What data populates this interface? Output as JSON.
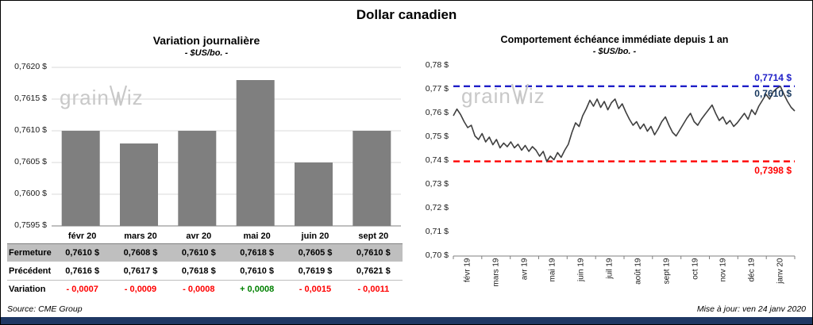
{
  "title": "Dollar canadien",
  "watermark": {
    "left": "grain",
    "right": "iz"
  },
  "footer": {
    "source": "Source: CME Group",
    "updated": "Mise à jour: ven 24 janv 2020"
  },
  "colors": {
    "bar": "#7f7f7f",
    "line": "#3f3f3f",
    "high": "#1f1fc8",
    "low": "#ff0000",
    "high_label": "#1f1fc8",
    "last_label": "#17375e",
    "low_label": "#ff0000",
    "up": "#008000",
    "down": "#ff0000",
    "accent_bar": "#1f3864",
    "table_row_bg": "#bfbfbf",
    "watermark": "#c8c8c8"
  },
  "chart_data": [
    {
      "type": "bar",
      "title": "Variation  journalière",
      "subtitle": "- $US/bo. -",
      "categories": [
        "févr 20",
        "mars 20",
        "avr 20",
        "mai 20",
        "juin 20",
        "sept 20"
      ],
      "values": [
        0.761,
        0.7608,
        0.761,
        0.7618,
        0.7605,
        0.761
      ],
      "ylim": [
        0.7595,
        0.762
      ],
      "ytick_labels": [
        "0,7620 $",
        "0,7615 $",
        "0,7610 $",
        "0,7605 $",
        "0,7600 $",
        "0,7595 $"
      ],
      "grid": true,
      "legend": "none"
    },
    {
      "type": "line",
      "title": "Comportement échéance immédiate depuis 1 an",
      "subtitle": "- $US/bo. -",
      "x_labels": [
        "févr 19",
        "mars 19",
        "avr 19",
        "mai 19",
        "juin 19",
        "juil 19",
        "août 19",
        "sept 19",
        "oct 19",
        "nov 19",
        "déc 19",
        "janv 20"
      ],
      "ylim": [
        0.7,
        0.78
      ],
      "ytick_labels": [
        "0,78 $",
        "0,77 $",
        "0,76 $",
        "0,75 $",
        "0,74 $",
        "0,73 $",
        "0,72 $",
        "0,71 $",
        "0,70 $"
      ],
      "high_line": {
        "value": 0.7714,
        "label": "0,7714 $"
      },
      "low_line": {
        "value": 0.7398,
        "label": "0,7398 $"
      },
      "last_value": 0.761,
      "last_label": "0,7610 $",
      "grid": false,
      "legend": "none",
      "series": [
        0.759,
        0.7618,
        0.7595,
        0.7565,
        0.754,
        0.755,
        0.7505,
        0.749,
        0.7515,
        0.748,
        0.75,
        0.7468,
        0.749,
        0.7455,
        0.7475,
        0.746,
        0.748,
        0.7455,
        0.747,
        0.7445,
        0.7465,
        0.744,
        0.746,
        0.7445,
        0.742,
        0.744,
        0.7398,
        0.742,
        0.7405,
        0.7435,
        0.7415,
        0.7445,
        0.747,
        0.752,
        0.756,
        0.7545,
        0.759,
        0.762,
        0.7655,
        0.763,
        0.766,
        0.7625,
        0.765,
        0.7615,
        0.7645,
        0.766,
        0.762,
        0.764,
        0.7605,
        0.7575,
        0.755,
        0.7565,
        0.7535,
        0.7555,
        0.7525,
        0.7545,
        0.751,
        0.7535,
        0.7565,
        0.7585,
        0.755,
        0.752,
        0.7505,
        0.753,
        0.7555,
        0.758,
        0.76,
        0.7565,
        0.755,
        0.7575,
        0.7595,
        0.7615,
        0.7635,
        0.76,
        0.757,
        0.7585,
        0.7555,
        0.757,
        0.7545,
        0.756,
        0.758,
        0.76,
        0.7575,
        0.7615,
        0.7595,
        0.763,
        0.7655,
        0.768,
        0.766,
        0.769,
        0.7705,
        0.7714,
        0.768,
        0.765,
        0.7625,
        0.761
      ]
    }
  ],
  "table": {
    "columns": [
      "févr 20",
      "mars 20",
      "avr 20",
      "mai 20",
      "juin 20",
      "sept 20"
    ],
    "rows": [
      {
        "key": "fermeture",
        "label": "Fermeture",
        "values": [
          "0,7610  $",
          "0,7608  $",
          "0,7610  $",
          "0,7618  $",
          "0,7605  $",
          "0,7610  $"
        ]
      },
      {
        "key": "precedent",
        "label": "Précédent",
        "values": [
          "0,7616  $",
          "0,7617  $",
          "0,7618  $",
          "0,7610  $",
          "0,7619  $",
          "0,7621  $"
        ]
      },
      {
        "key": "variation",
        "label": "Variation",
        "values": [
          "- 0,0007",
          "- 0,0009",
          "- 0,0008",
          "+ 0,0008",
          "- 0,0015",
          "- 0,0011"
        ],
        "trend": [
          "down",
          "down",
          "down",
          "up",
          "down",
          "down"
        ]
      }
    ]
  }
}
